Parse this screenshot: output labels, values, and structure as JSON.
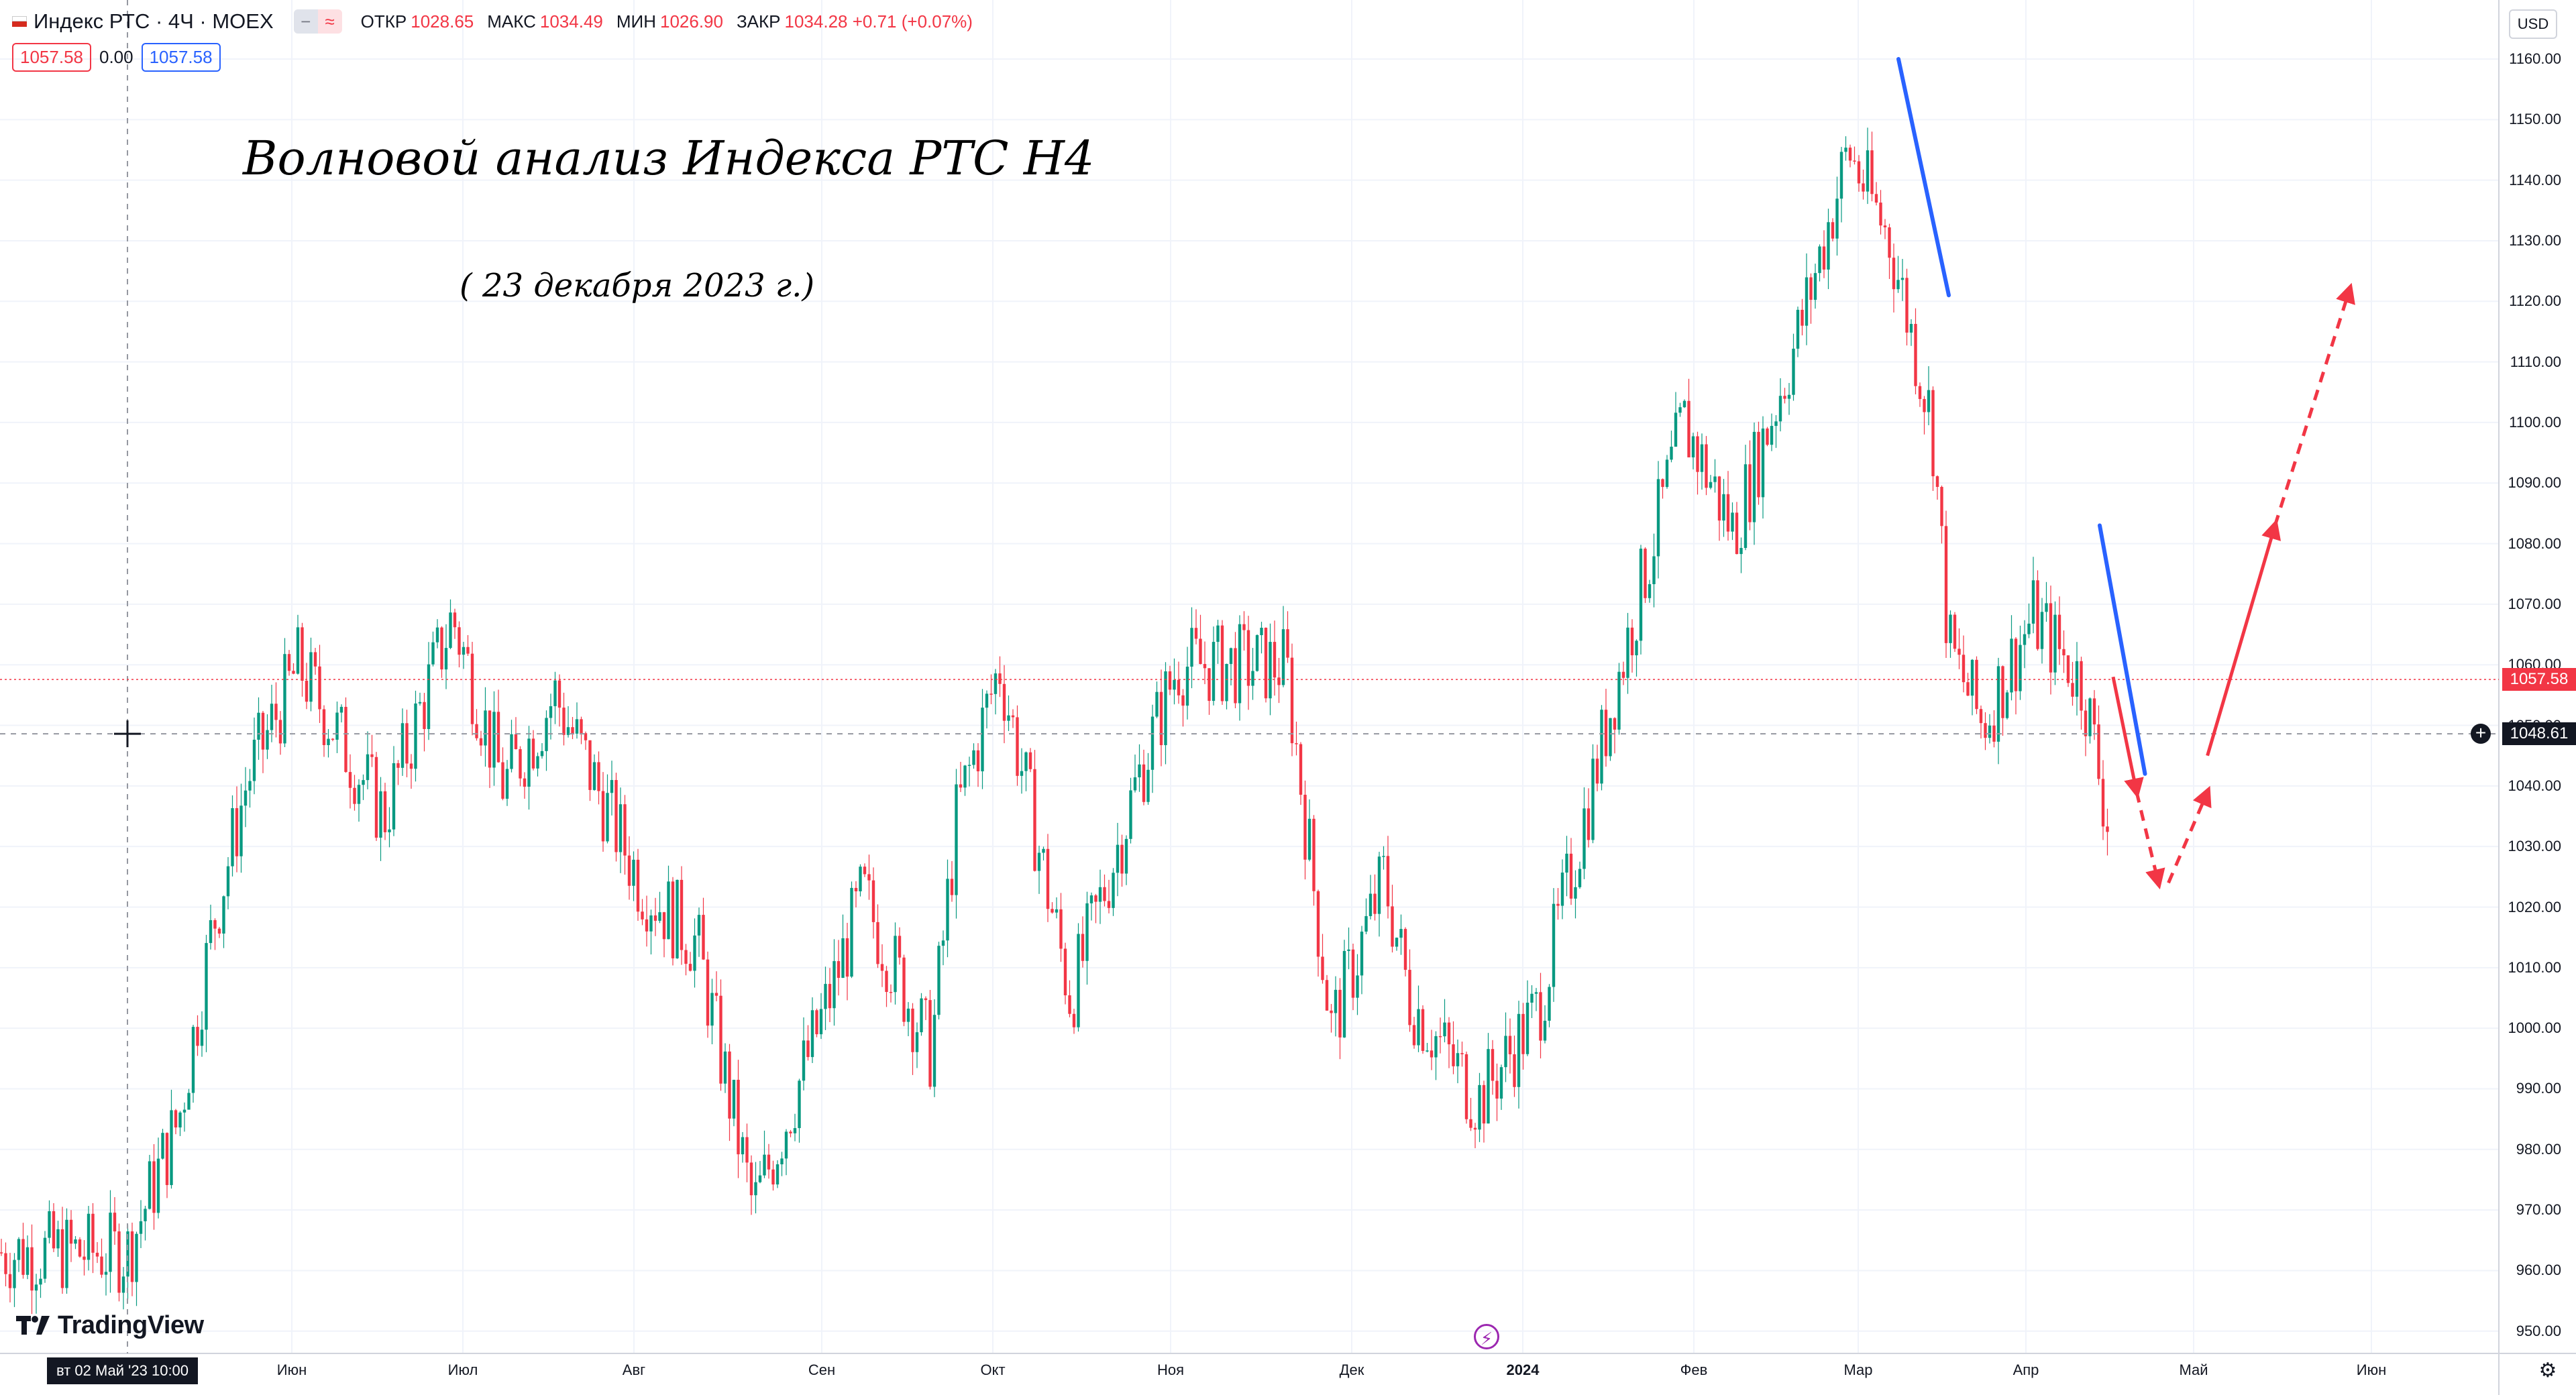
{
  "header": {
    "symbol": "Индекс РТС · 4Ч · MOEX",
    "ohlc": [
      {
        "k": "ОТКР",
        "v": "1028.65"
      },
      {
        "k": "МАКС",
        "v": "1034.49"
      },
      {
        "k": "МИН",
        "v": "1026.90"
      },
      {
        "k": "ЗАКР",
        "v": "1034.28 +0.71 (+0.07%)"
      }
    ],
    "sell_price": "1057.58",
    "spread": "0.00",
    "buy_price": "1057.58"
  },
  "annotations": {
    "title": "Волновой анализ Индекса РТС Н4",
    "date": "( 23 декабря 2023 г.)"
  },
  "currency": "USD",
  "logo_text": "TradingView",
  "crosshair_date": "вт 02 Май '23   10:00",
  "last_price_label": "1057.58",
  "crosshair_price_label": "1048.61",
  "colors": {
    "up": "#089981",
    "down": "#f23645",
    "wave_blue": "#2962ff",
    "wave_red": "#f23645"
  },
  "chart_data": {
    "type": "candlestick",
    "symbol": "Индекс РТС",
    "timeframe": "4Ч",
    "y_axis": {
      "range": [
        946,
        1163
      ],
      "ticks": [
        "950.00",
        "960.00",
        "970.00",
        "980.00",
        "990.00",
        "1000.00",
        "1010.00",
        "1020.00",
        "1030.00",
        "1040.00",
        "1050.00",
        "1060.00",
        "1070.00",
        "1080.00",
        "1090.00",
        "1100.00",
        "1110.00",
        "1120.00",
        "1130.00",
        "1140.00",
        "1150.00",
        "1160.00"
      ]
    },
    "x_axis": {
      "ticks": [
        "Июн",
        "Июл",
        "Авг",
        "Сен",
        "Окт",
        "Ноя",
        "Дек",
        "2024",
        "Фев",
        "Мар",
        "Апр",
        "Май",
        "Июн"
      ]
    },
    "price_path_anchors": [
      [
        0,
        963
      ],
      [
        0.3,
        985
      ],
      [
        0.5,
        1017
      ],
      [
        0.7,
        1041
      ],
      [
        1.0,
        1060
      ],
      [
        1.5,
        1035
      ],
      [
        1.9,
        1068
      ],
      [
        2.2,
        1040
      ],
      [
        2.5,
        1055
      ],
      [
        3.0,
        1024
      ],
      [
        3.3,
        1014
      ],
      [
        3.6,
        970
      ],
      [
        4.2,
        1022
      ],
      [
        4.6,
        996
      ],
      [
        4.75,
        1035
      ],
      [
        5.0,
        1060
      ],
      [
        5.4,
        1005
      ],
      [
        5.8,
        1043
      ],
      [
        6.0,
        1060
      ],
      [
        6.6,
        1060
      ],
      [
        6.85,
        1000
      ],
      [
        7.15,
        1025
      ],
      [
        7.3,
        1005
      ],
      [
        7.7,
        988
      ],
      [
        8.05,
        1003
      ],
      [
        8.5,
        1056
      ],
      [
        8.9,
        1100
      ],
      [
        9.2,
        1082
      ],
      [
        9.6,
        1115
      ],
      [
        9.9,
        1145
      ],
      [
        10.15,
        1130
      ],
      [
        10.4,
        1100
      ],
      [
        10.5,
        1063
      ],
      [
        10.7,
        1050
      ],
      [
        11.0,
        1068
      ],
      [
        11.3,
        1057
      ],
      [
        11.45,
        1034
      ]
    ],
    "last_price": 1057.58,
    "crosshair_price": 1048.61,
    "wave_lines": [
      {
        "color": "blue",
        "from": [
          "10.2 ",
          1160
        ],
        "to": [
          10.5,
          1121
        ]
      },
      {
        "color": "blue",
        "from": [
          11.4,
          1083
        ],
        "to": [
          11.67,
          1042
        ]
      }
    ],
    "forecast": [
      {
        "style": "solid",
        "from": [
          11.48,
          1058
        ],
        "to": [
          11.62,
          1039
        ]
      },
      {
        "style": "dashed",
        "from": [
          11.62,
          1039
        ],
        "to": [
          11.75,
          1024
        ]
      },
      {
        "style": "dashed",
        "from": [
          11.81,
          1024
        ],
        "to": [
          12.04,
          1039
        ]
      },
      {
        "style": "solid",
        "from": [
          12.04,
          1045
        ],
        "to": [
          12.42,
          1083
        ]
      },
      {
        "style": "dashed",
        "from": [
          12.42,
          1083
        ],
        "to": [
          12.84,
          1122
        ]
      }
    ]
  }
}
